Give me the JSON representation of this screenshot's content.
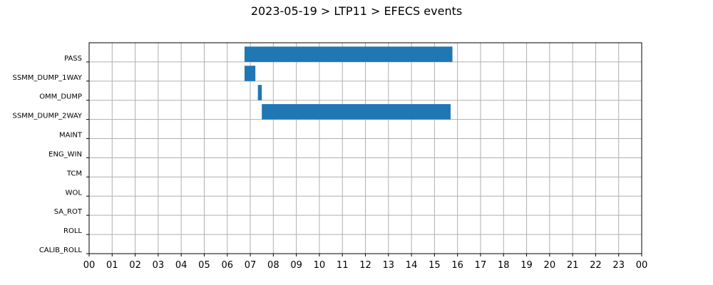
{
  "chart_data": {
    "type": "bar",
    "orientation": "horizontal-timeline",
    "title": "2023-05-19 > LTP11 > EFECS events",
    "xlabel": "",
    "ylabel": "",
    "x_unit": "hour",
    "xlim": [
      0,
      24
    ],
    "x_tick_labels": [
      "00",
      "01",
      "02",
      "03",
      "04",
      "05",
      "06",
      "07",
      "08",
      "09",
      "10",
      "11",
      "12",
      "13",
      "14",
      "15",
      "16",
      "17",
      "18",
      "19",
      "20",
      "21",
      "22",
      "23",
      "00"
    ],
    "categories": [
      "PASS",
      "SSMM_DUMP_1WAY",
      "OMM_DUMP",
      "SSMM_DUMP_2WAY",
      "MAINT",
      "ENG_WIN",
      "TCM",
      "WOL",
      "SA_ROT",
      "ROLL",
      "CALIB_ROLL"
    ],
    "series": [
      {
        "values": [
          [
            [
              6.75,
              15.78
            ]
          ],
          [
            [
              6.75,
              7.22
            ]
          ],
          [
            [
              7.33,
              7.5
            ]
          ],
          [
            [
              7.5,
              15.7
            ]
          ],
          [],
          [],
          [],
          [],
          [],
          [],
          []
        ],
        "color": "#1f77b4"
      }
    ],
    "grid": true,
    "legend": "none"
  }
}
